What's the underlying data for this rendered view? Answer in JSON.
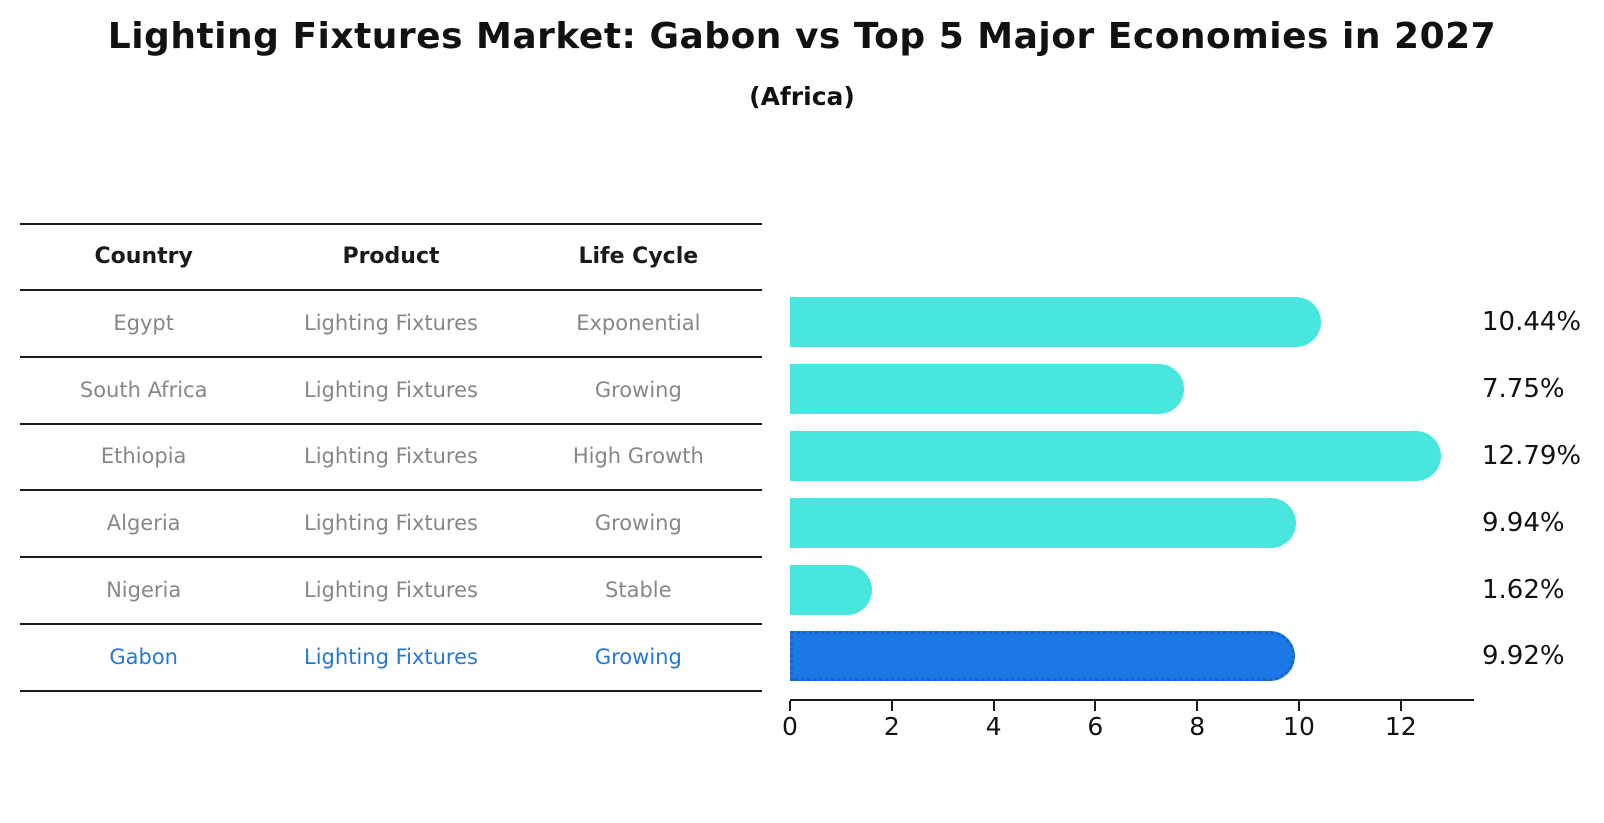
{
  "title": "Lighting Fixtures Market: Gabon vs Top 5 Major Economies in 2027",
  "subtitle": "(Africa)",
  "table": {
    "headers": [
      "Country",
      "Product",
      "Life Cycle"
    ],
    "rows": [
      {
        "country": "Egypt",
        "product": "Lighting Fixtures",
        "life_cycle": "Exponential",
        "highlight": false
      },
      {
        "country": "South Africa",
        "product": "Lighting Fixtures",
        "life_cycle": "Growing",
        "highlight": false
      },
      {
        "country": "Ethiopia",
        "product": "Lighting Fixtures",
        "life_cycle": "High Growth",
        "highlight": false
      },
      {
        "country": "Algeria",
        "product": "Lighting Fixtures",
        "life_cycle": "Growing",
        "highlight": false
      },
      {
        "country": "Nigeria",
        "product": "Lighting Fixtures",
        "life_cycle": "Stable",
        "highlight": false
      },
      {
        "country": "Gabon",
        "product": "Lighting Fixtures",
        "life_cycle": "Growing",
        "highlight": true
      }
    ]
  },
  "chart_data": {
    "type": "bar",
    "orientation": "horizontal",
    "title": "Lighting Fixtures Market: Gabon vs Top 5 Major Economies in 2027",
    "subtitle": "(Africa)",
    "categories": [
      "Egypt",
      "South Africa",
      "Ethiopia",
      "Algeria",
      "Nigeria",
      "Gabon"
    ],
    "values": [
      10.44,
      7.75,
      12.79,
      9.94,
      1.62,
      9.92
    ],
    "value_labels": [
      "10.44%",
      "7.75%",
      "12.79%",
      "9.94%",
      "1.62%",
      "9.92%"
    ],
    "highlight_index": 5,
    "xlim": [
      0,
      13.4
    ],
    "x_ticks": [
      0,
      2,
      4,
      6,
      8,
      10,
      12
    ],
    "grid": false,
    "legend": "none",
    "xlabel": "",
    "ylabel": ""
  },
  "colors": {
    "bar": "#49e6e0",
    "highlight_bar": "#1c78e5",
    "highlight_border": "#1a63cc",
    "highlight_text": "#2878d2",
    "table_text": "#878787",
    "header_text": "#1a1a1a",
    "axis": "#1c1c1c",
    "label_text": "#111111",
    "background": "#ffffff"
  }
}
